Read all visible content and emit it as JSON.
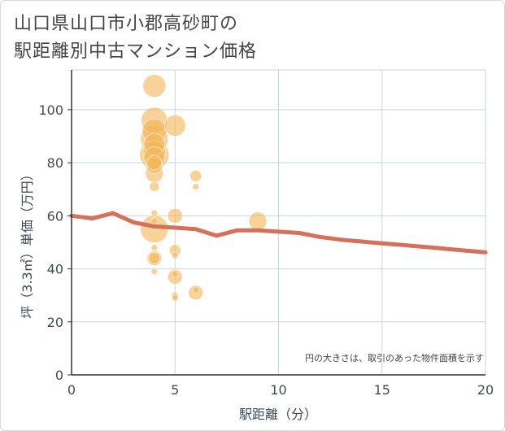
{
  "title_line1": "山口県山口市小郡高砂町の",
  "title_line2": "駅距離別中古マンション価格",
  "chart_data": {
    "type": "scatter",
    "title": "山口県山口市小郡高砂町の駅距離別中古マンション価格",
    "xlabel": "駅距離（分）",
    "ylabel": "坪（3.3㎡）単価（万円）",
    "xlim": [
      0,
      20
    ],
    "ylim": [
      0,
      115
    ],
    "xticks": [
      0,
      5,
      10,
      15,
      20
    ],
    "yticks": [
      0,
      20,
      40,
      60,
      80,
      100
    ],
    "grid": true,
    "annotation": "円の大きさは、取引のあった物件面積を示す",
    "scatter_points": [
      {
        "x": 4,
        "y": 109,
        "size": 14
      },
      {
        "x": 4,
        "y": 96,
        "size": 16
      },
      {
        "x": 4,
        "y": 92,
        "size": 15
      },
      {
        "x": 4,
        "y": 89,
        "size": 17
      },
      {
        "x": 4,
        "y": 87,
        "size": 13
      },
      {
        "x": 4,
        "y": 84,
        "size": 14
      },
      {
        "x": 4,
        "y": 83,
        "size": 18
      },
      {
        "x": 4,
        "y": 82,
        "size": 13
      },
      {
        "x": 4,
        "y": 80,
        "size": 9
      },
      {
        "x": 4,
        "y": 79,
        "size": 10
      },
      {
        "x": 4,
        "y": 76,
        "size": 11
      },
      {
        "x": 4,
        "y": 71,
        "size": 6
      },
      {
        "x": 4,
        "y": 61,
        "size": 4
      },
      {
        "x": 4,
        "y": 58,
        "size": 4
      },
      {
        "x": 4,
        "y": 55,
        "size": 17
      },
      {
        "x": 4,
        "y": 48,
        "size": 4
      },
      {
        "x": 4,
        "y": 44,
        "size": 9
      },
      {
        "x": 4,
        "y": 44,
        "size": 7
      },
      {
        "x": 4,
        "y": 39,
        "size": 4
      },
      {
        "x": 5,
        "y": 94,
        "size": 13
      },
      {
        "x": 5,
        "y": 60,
        "size": 9
      },
      {
        "x": 5,
        "y": 47,
        "size": 7
      },
      {
        "x": 5,
        "y": 45,
        "size": 4
      },
      {
        "x": 5,
        "y": 38,
        "size": 4
      },
      {
        "x": 5,
        "y": 37,
        "size": 9
      },
      {
        "x": 5,
        "y": 30,
        "size": 4
      },
      {
        "x": 5,
        "y": 29,
        "size": 4
      },
      {
        "x": 6,
        "y": 75,
        "size": 7
      },
      {
        "x": 6,
        "y": 71,
        "size": 4
      },
      {
        "x": 6,
        "y": 32,
        "size": 4
      },
      {
        "x": 6,
        "y": 31,
        "size": 9
      },
      {
        "x": 9,
        "y": 58,
        "size": 11
      }
    ],
    "trend_line": {
      "x": [
        0,
        1,
        2,
        3,
        4,
        5,
        6,
        7,
        8,
        9,
        10,
        11,
        12,
        13,
        14,
        15,
        16,
        17,
        18,
        19,
        20
      ],
      "y": [
        60,
        59,
        61,
        57.5,
        56,
        55.5,
        55,
        52.5,
        54.5,
        54.5,
        54,
        53.5,
        52,
        51,
        50.3,
        49.6,
        49,
        48.3,
        47.6,
        46.9,
        46.2
      ]
    },
    "colors": {
      "bubble": "#f2b65a",
      "trend": "#d5705a",
      "grid": "#c9d3e0"
    }
  }
}
